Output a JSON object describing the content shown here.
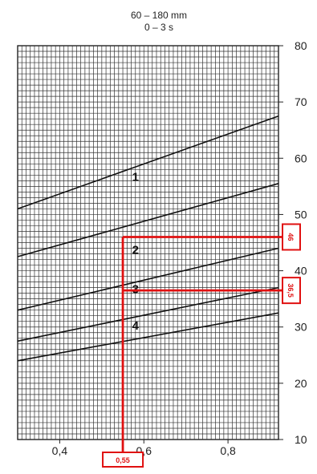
{
  "chart_data": {
    "type": "line",
    "title_lines": [
      "60 – 180 mm",
      "0 – 3 s"
    ],
    "x_range": [
      0.3,
      0.92
    ],
    "y_range": [
      10,
      80
    ],
    "x_ticks": [
      0.4,
      0.6,
      0.8
    ],
    "x_tick_labels": [
      "0,4",
      "0,6",
      "0,8"
    ],
    "y_ticks": [
      10,
      20,
      30,
      40,
      50,
      60,
      70,
      80
    ],
    "y_tick_labels": [
      "10",
      "20",
      "30",
      "40",
      "50",
      "60",
      "70",
      "80"
    ],
    "grid": true,
    "series": [
      {
        "name": "1",
        "label_at": [
          0.58,
          56
        ],
        "points": [
          [
            0.3,
            51
          ],
          [
            0.92,
            67.5
          ]
        ]
      },
      {
        "name": "2",
        "label_at": [
          0.58,
          43
        ],
        "points": [
          [
            0.3,
            42.5
          ],
          [
            0.92,
            55.5
          ]
        ]
      },
      {
        "name": "3",
        "label_at": [
          0.58,
          36
        ],
        "points": [
          [
            0.3,
            33
          ],
          [
            0.92,
            44
          ]
        ]
      },
      {
        "name": "4",
        "label_at": [
          0.58,
          29.5
        ],
        "points": [
          [
            0.3,
            27.5
          ],
          [
            0.92,
            37
          ]
        ]
      },
      {
        "name": "",
        "points": [
          [
            0.3,
            24
          ],
          [
            0.92,
            32.5
          ]
        ]
      }
    ],
    "annotations": {
      "x_value_label": "0,55",
      "x_value": 0.55,
      "y_values": [
        {
          "label": "46",
          "value": 46
        },
        {
          "label": "36,5",
          "value": 36.5
        }
      ],
      "color": "#e01010"
    }
  }
}
